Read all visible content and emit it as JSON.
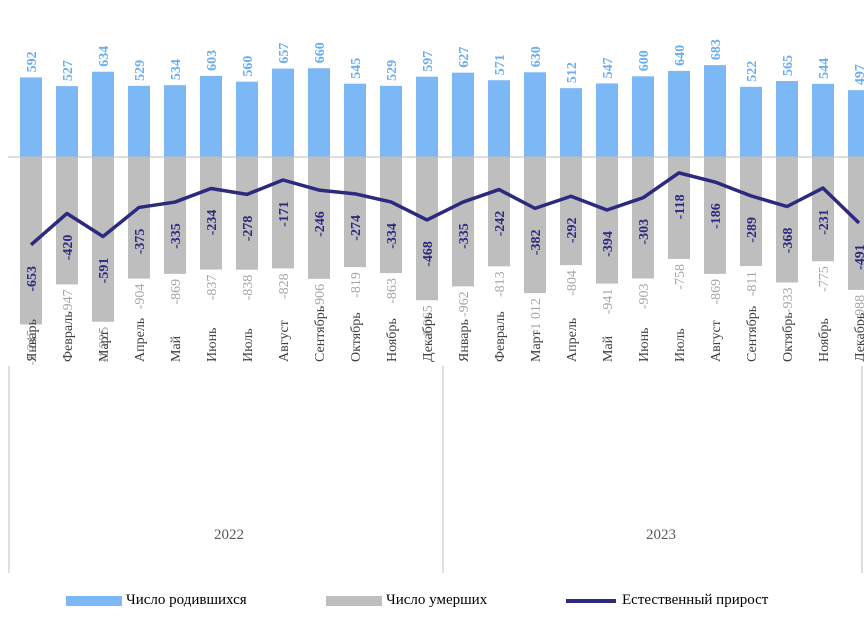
{
  "chart_data": {
    "type": "bar",
    "categories": [
      "Январь",
      "Февраль",
      "Март",
      "Апрель",
      "Май",
      "Июнь",
      "Июль",
      "Август",
      "Сентябрь",
      "Октябрь",
      "Ноябрь",
      "Декабрь",
      "Январь",
      "Февраль",
      "Март",
      "Апрель",
      "Май",
      "Июнь",
      "Июль",
      "Август",
      "Сентябрь",
      "Октябрь",
      "Ноябрь",
      "Декабрь"
    ],
    "groups": [
      "2022",
      "2023"
    ],
    "series": [
      {
        "name": "Число родившихся",
        "kind": "bar",
        "color": "#7cb8f5",
        "values": [
          592,
          527,
          634,
          529,
          534,
          603,
          560,
          657,
          660,
          545,
          529,
          597,
          627,
          571,
          630,
          512,
          547,
          600,
          640,
          683,
          522,
          565,
          544,
          497
        ]
      },
      {
        "name": "Число умерших",
        "kind": "bar",
        "color": "#bebebe",
        "values": [
          -1245,
          -947,
          -1225,
          -904,
          -869,
          -837,
          -838,
          -828,
          -906,
          -819,
          -863,
          -1065,
          -962,
          -813,
          -1012,
          -804,
          -941,
          -903,
          -758,
          -869,
          -811,
          -933,
          -775,
          -988
        ]
      },
      {
        "name": "Естественный прирост",
        "kind": "line",
        "color": "#2b2a7e",
        "values": [
          -653,
          -420,
          -591,
          -375,
          -335,
          -234,
          -278,
          -171,
          -246,
          -274,
          -334,
          -468,
          -335,
          -242,
          -382,
          -292,
          -394,
          -303,
          -118,
          -186,
          -289,
          -368,
          -231,
          -491
        ]
      }
    ],
    "labels": {
      "births": [
        "592",
        "527",
        "634",
        "529",
        "534",
        "603",
        "560",
        "657",
        "660",
        "545",
        "529",
        "597",
        "627",
        "571",
        "630",
        "512",
        "547",
        "600",
        "640",
        "683",
        "522",
        "565",
        "544",
        "497"
      ],
      "deaths": [
        "-1 245",
        "-947",
        "-1 225",
        "-904",
        "-869",
        "-837",
        "-838",
        "-828",
        "-906",
        "-819",
        "-863",
        "-1 065",
        "-962",
        "-813",
        "-1 012",
        "-804",
        "-941",
        "-903",
        "-758",
        "-869",
        "-811",
        "-933",
        "-775",
        "-988"
      ],
      "natural": [
        "-653",
        "-420",
        "-591",
        "-375",
        "-335",
        "-234",
        "-278",
        "-171",
        "-246",
        "-274",
        "-334",
        "-468",
        "-335",
        "-242",
        "-382",
        "-292",
        "-394",
        "-303",
        "-118",
        "-186",
        "-289",
        "-368",
        "-231",
        "-491"
      ]
    },
    "colors": {
      "births_label": "#6aaef0",
      "deaths_label": "#a6a6a6",
      "natural_label": "#2b2a7e",
      "axis": "#bfbfbf"
    },
    "xlabel": "",
    "ylabel": "",
    "title": ""
  }
}
